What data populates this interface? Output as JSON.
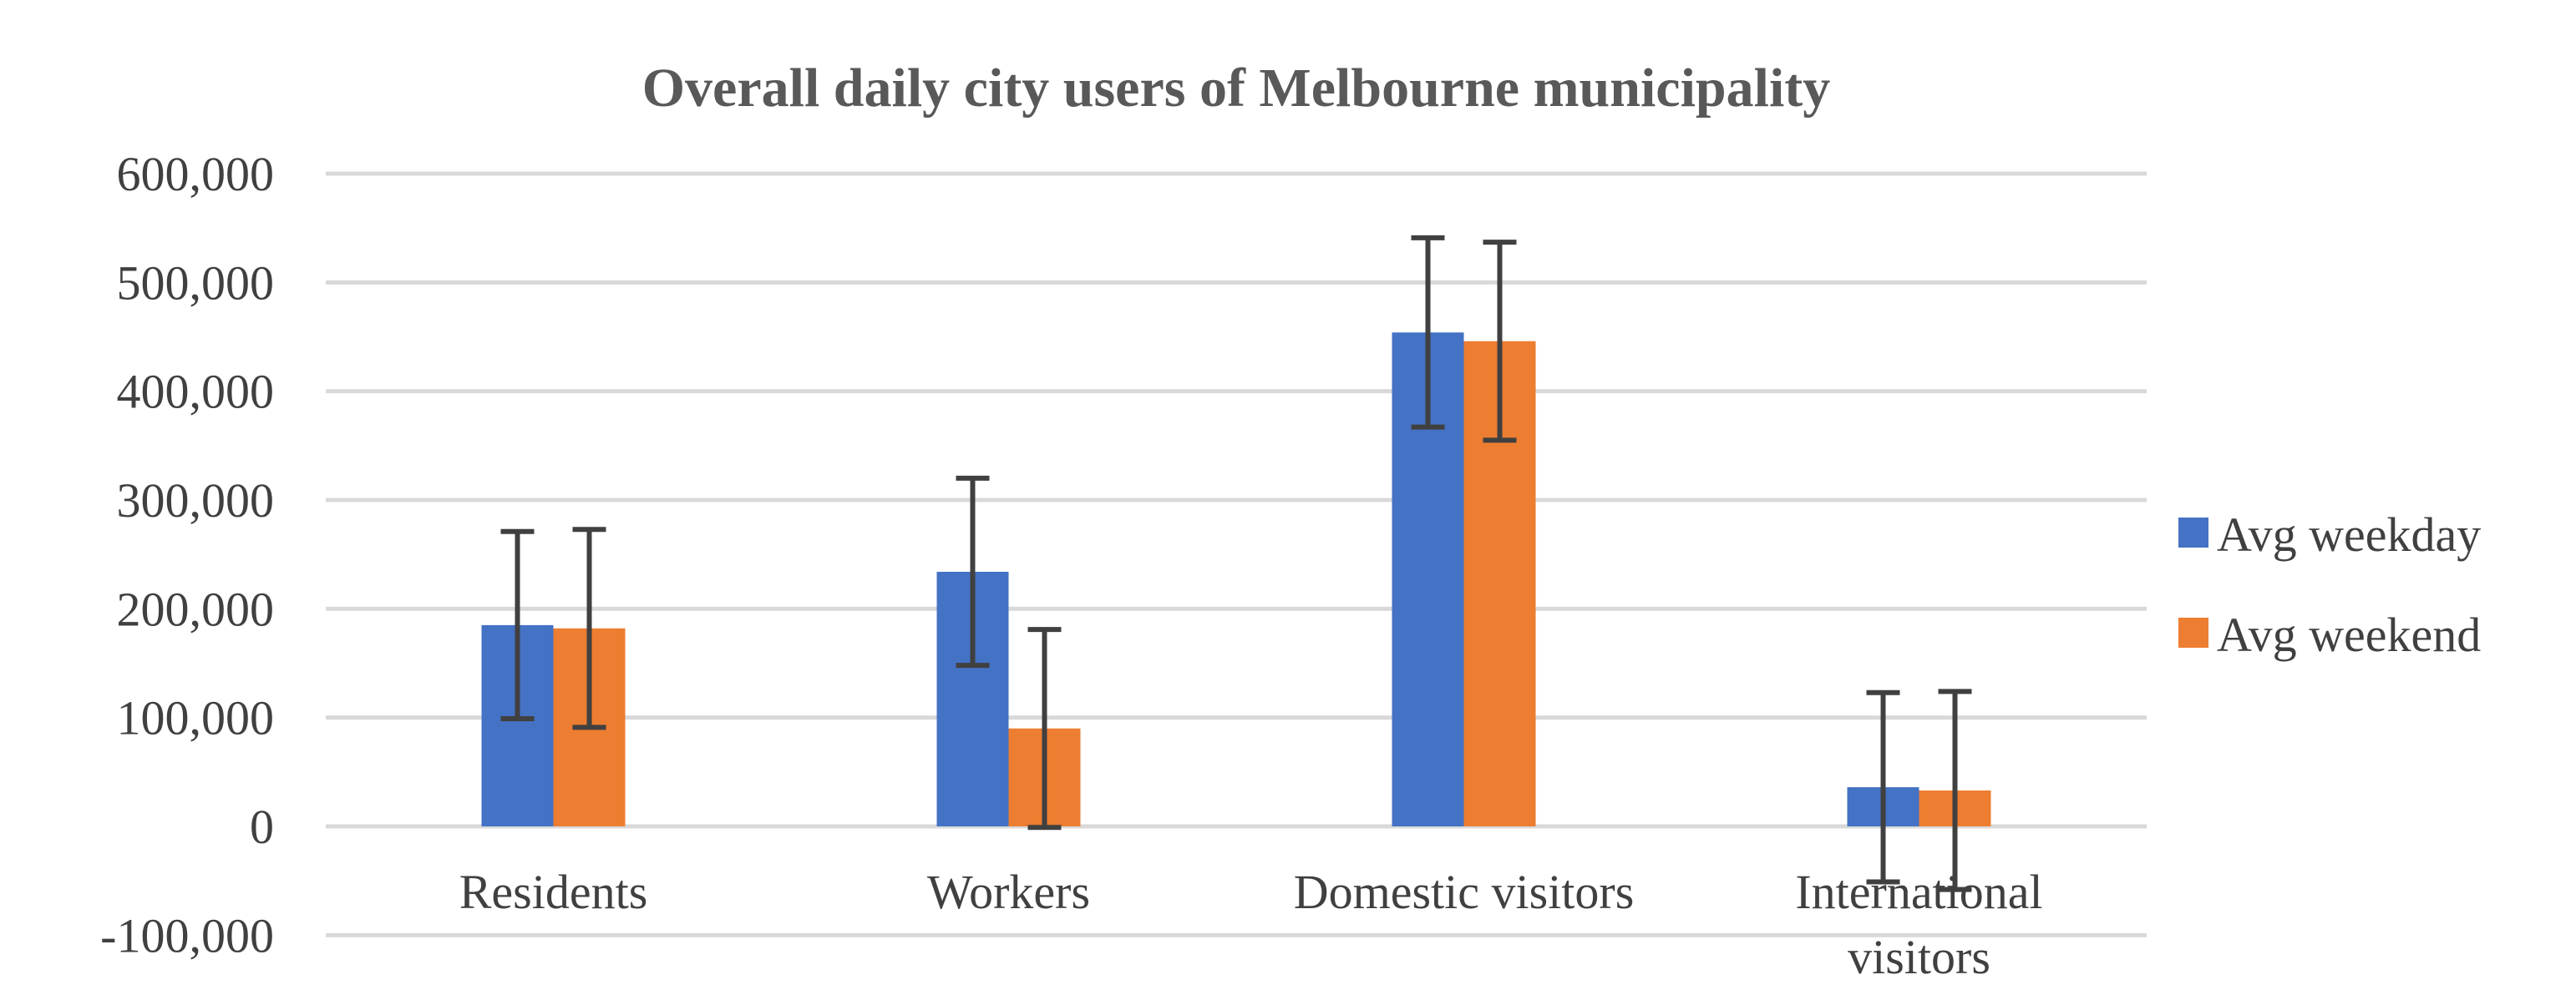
{
  "chart_data": {
    "type": "bar",
    "title": "Overall daily city users of Melbourne municipality",
    "xlabel": "",
    "ylabel": "",
    "categories": [
      "Residents",
      "Workers",
      "Domestic visitors",
      "International visitors"
    ],
    "series": [
      {
        "name": "Avg weekday",
        "color": "#4472c4",
        "values": [
          185000,
          234000,
          454000,
          36000
        ],
        "error": [
          86000,
          86000,
          87000,
          87000
        ]
      },
      {
        "name": "Avg weekend",
        "color": "#ed7d31",
        "values": [
          182000,
          90000,
          446000,
          33000
        ],
        "error": [
          91000,
          91000,
          91000,
          91000
        ]
      }
    ],
    "ylim": [
      -100000,
      600000
    ],
    "yticks": [
      -100000,
      0,
      100000,
      200000,
      300000,
      400000,
      500000,
      600000
    ],
    "ytick_labels": [
      "-100,000",
      "0",
      "100,000",
      "200,000",
      "300,000",
      "400,000",
      "500,000",
      "600,000"
    ],
    "grid": true,
    "legend_position": "right"
  }
}
